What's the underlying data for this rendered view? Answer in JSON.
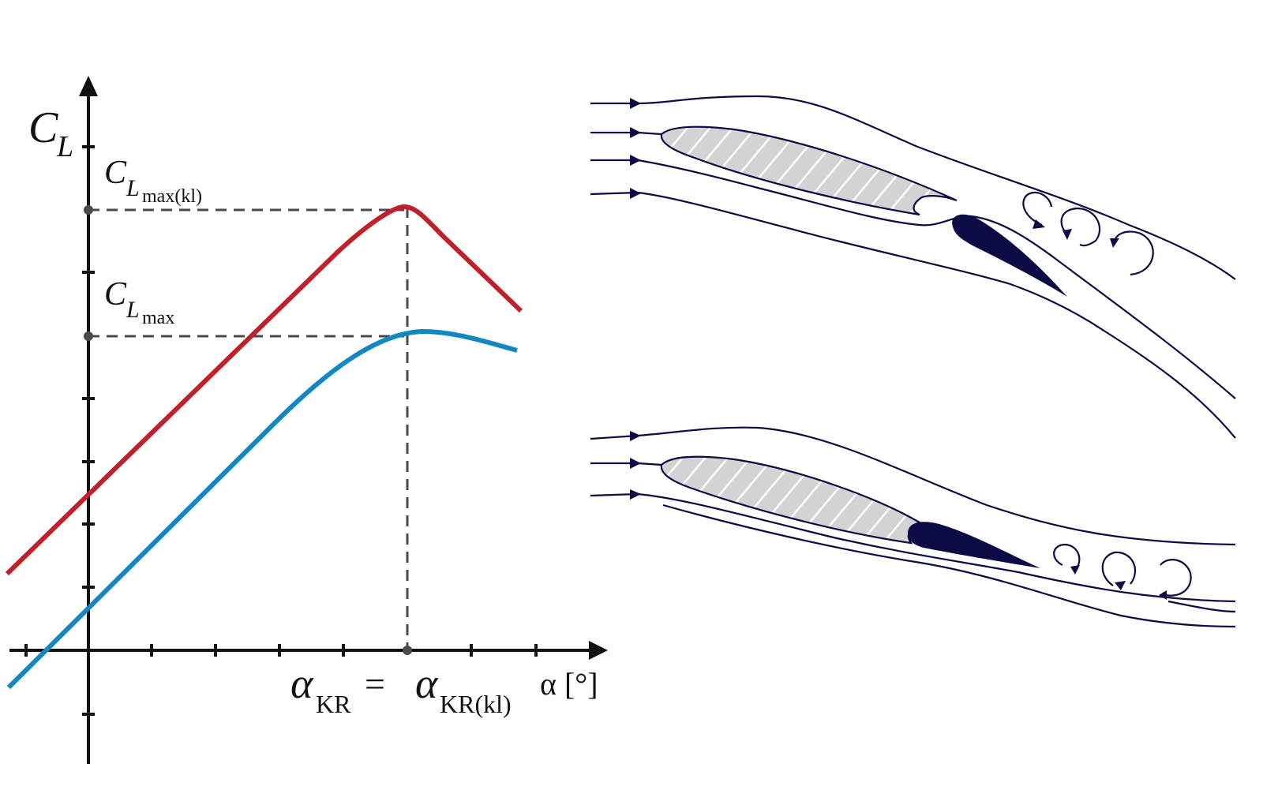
{
  "colors": {
    "curve_flapped": "#c0202a",
    "curve_clean": "#1187c4",
    "axis": "#111111",
    "guide": "#4a4a4a",
    "airfoil_fill": "#d3d3d3",
    "flap_fill": "#0b0a45",
    "streamline": "#0b0a45"
  },
  "labels": {
    "y_axis": {
      "main": "C",
      "sub": "L"
    },
    "clmax_kl": {
      "main": "C",
      "sub": "L",
      "subsub": "max(kl)"
    },
    "clmax": {
      "main": "C",
      "sub": "L",
      "subsub": "max"
    },
    "alpha_kr": {
      "main": "α",
      "sub": "KR"
    },
    "equals": "=",
    "alpha_kr_kl": {
      "main": "α",
      "sub": "KR(kl)"
    },
    "x_axis": "α [°]"
  },
  "icons": {
    "vortex": "curled-arrow-icon",
    "stream_arrow": "arrowhead-icon"
  }
}
